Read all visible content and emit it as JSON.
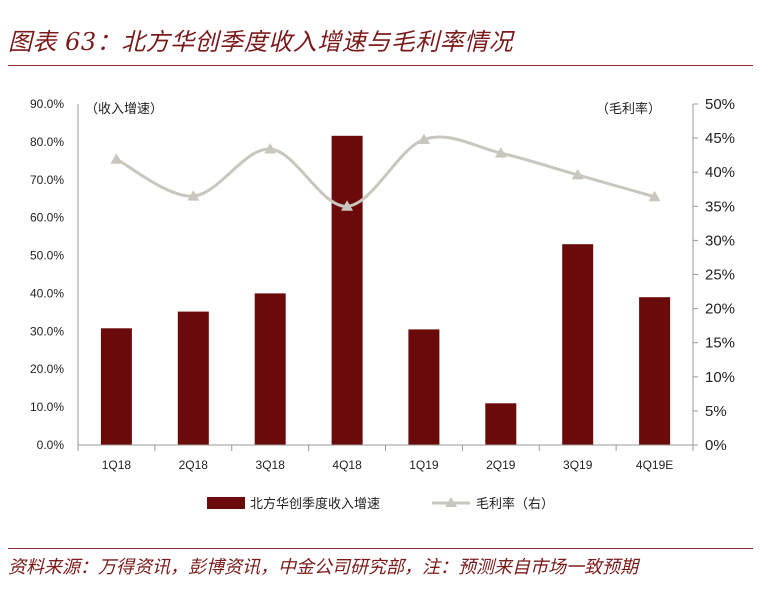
{
  "figure": {
    "title": "图表 63：北方华创季度收入增速与毛利率情况",
    "source": "资料来源：万得资讯，彭博资讯，中金公司研究部，注：预测来自市场一致预期"
  },
  "chart_data": {
    "type": "bar+line",
    "categories": [
      "1Q18",
      "2Q18",
      "3Q18",
      "4Q18",
      "1Q19",
      "2Q19",
      "3Q19",
      "4Q19E"
    ],
    "left_axis": {
      "label": "（收入增速）",
      "ylim": [
        0,
        90
      ],
      "ticks": [
        "0.0%",
        "10.0%",
        "20.0%",
        "30.0%",
        "40.0%",
        "50.0%",
        "60.0%",
        "70.0%",
        "80.0%",
        "90.0%"
      ]
    },
    "right_axis": {
      "label": "（毛利率）",
      "ylim": [
        0,
        50
      ],
      "ticks": [
        "0%",
        "5%",
        "10%",
        "15%",
        "20%",
        "25%",
        "30%",
        "35%",
        "40%",
        "45%",
        "50%"
      ]
    },
    "series": [
      {
        "name": "北方华创季度收入增速",
        "type": "bar",
        "axis": "left",
        "color": "#6b0a0a",
        "values": [
          30.8,
          35.2,
          40.0,
          81.6,
          30.5,
          11.0,
          53.0,
          39.0
        ]
      },
      {
        "name": "毛利率（右）",
        "type": "line",
        "axis": "right",
        "color": "#c9c7bd",
        "values": [
          41.9,
          36.5,
          43.4,
          35.0,
          44.8,
          42.8,
          39.6,
          36.4
        ]
      }
    ],
    "grid": false,
    "legend": "bottom"
  }
}
